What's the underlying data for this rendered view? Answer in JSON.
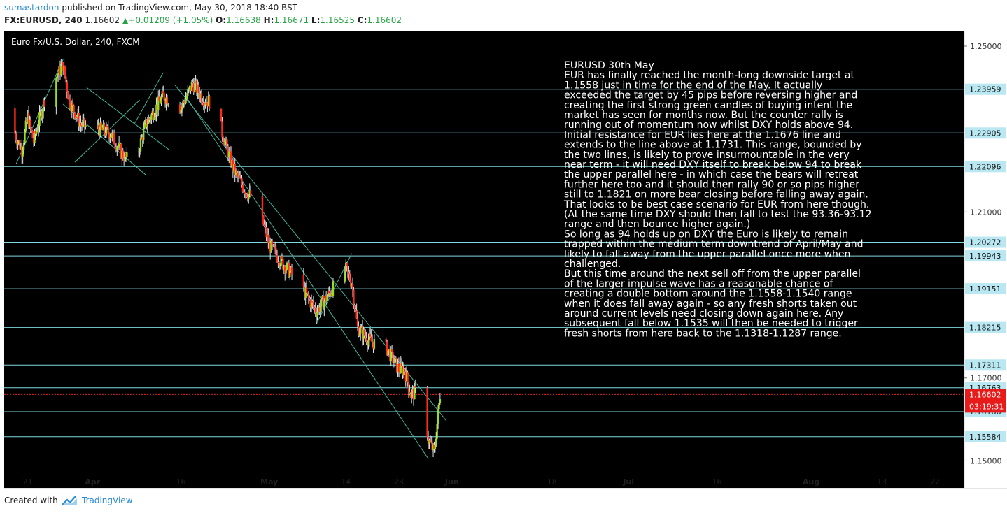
{
  "header": {
    "author": "sumastardon",
    "published_text": "published on TradingView.com, May 30, 2018 18:40 BST",
    "symbol": "FX:EURUSD, 240",
    "last": "1.16602",
    "change": "+0.01209 (+1.05%)",
    "o_label": "O:",
    "o_value": "1.16638",
    "h_label": "H:",
    "h_value": "1.16671",
    "l_label": "L:",
    "l_value": "1.16525",
    "c_label": "C:",
    "c_value": "1.16602"
  },
  "footer": {
    "created_with": "Created with",
    "brand": "TradingView"
  },
  "colors": {
    "background": "#000000",
    "bull": "#9bdc1c",
    "bear": "#ff2b1c",
    "level_line": "#7fd8de",
    "trendline": "#3fb59a",
    "price_tag": "#e81b1b",
    "level_tag": "#b9e8f2"
  },
  "chart_data": {
    "type": "candlestick",
    "title": "Euro Fx/U.S. Dollar, 240, FXCM",
    "y_ticks": [
      "1.25000",
      "1.21000",
      "1.17000",
      "1.15000"
    ],
    "y_range": [
      1.1435,
      1.2537
    ],
    "x_ticks": [
      "21",
      "Apr",
      "16",
      "May",
      "14",
      "23",
      "Jun",
      "18",
      "Jul",
      "16",
      "Aug",
      "13",
      "22"
    ],
    "x_range": [
      "2018-03-17",
      "2018-08-27"
    ],
    "horizontal_levels": [
      {
        "label": "1.23959",
        "value": 1.23959
      },
      {
        "label": "1.22905",
        "value": 1.22905
      },
      {
        "label": "1.22096",
        "value": 1.22096
      },
      {
        "label": "1.20272",
        "value": 1.20272
      },
      {
        "label": "1.19943",
        "value": 1.19943
      },
      {
        "label": "1.19151",
        "value": 1.19151
      },
      {
        "label": "1.18215",
        "value": 1.18215
      },
      {
        "label": "1.17311",
        "value": 1.17311
      },
      {
        "label": "1.16763",
        "value": 1.16763
      },
      {
        "label": "1.16186",
        "value": 1.16186
      },
      {
        "label": "1.15584",
        "value": 1.15584
      }
    ],
    "current_price": {
      "label": "1.16602",
      "value": 1.16602,
      "countdown": "03:19:31"
    },
    "trendlines": [
      {
        "from": [
          "2018-03-19",
          1.2215
        ],
        "to": [
          "2018-03-27",
          1.2468
        ]
      },
      {
        "from": [
          "2018-03-27",
          1.236
        ],
        "to": [
          "2018-04-10",
          1.219
        ]
      },
      {
        "from": [
          "2018-03-29",
          1.222
        ],
        "to": [
          "2018-04-09",
          1.237
        ]
      },
      {
        "from": [
          "2018-04-08",
          1.231
        ],
        "to": [
          "2018-04-13",
          1.2436
        ]
      },
      {
        "from": [
          "2018-04-15",
          1.2406
        ],
        "to": [
          "2018-05-31",
          1.1598
        ]
      },
      {
        "from": [
          "2018-04-17",
          1.2375
        ],
        "to": [
          "2018-05-28",
          1.1505
        ]
      },
      {
        "from": [
          "2018-03-31",
          1.24
        ],
        "to": [
          "2018-04-14",
          1.225
        ]
      },
      {
        "from": [
          "2018-05-09",
          1.183
        ],
        "to": [
          "2018-05-15",
          1.2
        ]
      }
    ],
    "path": [
      [
        "2018-03-17",
        1.235
      ],
      [
        "2018-03-20",
        1.225
      ],
      [
        "2018-03-21",
        1.233
      ],
      [
        "2018-03-22",
        1.227
      ],
      [
        "2018-03-24",
        1.238
      ],
      [
        "2018-03-27",
        1.2455
      ],
      [
        "2018-03-28",
        1.237
      ],
      [
        "2018-03-30",
        1.231
      ],
      [
        "2018-04-02",
        1.23
      ],
      [
        "2018-04-04",
        1.229
      ],
      [
        "2018-04-06",
        1.224
      ],
      [
        "2018-04-08",
        1.221
      ],
      [
        "2018-04-10",
        1.231
      ],
      [
        "2018-04-13",
        1.238
      ],
      [
        "2018-04-16",
        1.235
      ],
      [
        "2018-04-18",
        1.241
      ],
      [
        "2018-04-20",
        1.237
      ],
      [
        "2018-04-22",
        1.236
      ],
      [
        "2018-04-23",
        1.229
      ],
      [
        "2018-04-25",
        1.22
      ],
      [
        "2018-04-27",
        1.215
      ],
      [
        "2018-04-29",
        1.212
      ],
      [
        "2018-05-01",
        1.202
      ],
      [
        "2018-05-03",
        1.198
      ],
      [
        "2018-05-06",
        1.193
      ],
      [
        "2018-05-09",
        1.186
      ],
      [
        "2018-05-11",
        1.19
      ],
      [
        "2018-05-14",
        1.196
      ],
      [
        "2018-05-15",
        1.193
      ],
      [
        "2018-05-16",
        1.182
      ],
      [
        "2018-05-18",
        1.179
      ],
      [
        "2018-05-21",
        1.177
      ],
      [
        "2018-05-23",
        1.172
      ],
      [
        "2018-05-24",
        1.172
      ],
      [
        "2018-05-25",
        1.166
      ],
      [
        "2018-05-27",
        1.167
      ],
      [
        "2018-05-28",
        1.155
      ],
      [
        "2018-05-29",
        1.152
      ],
      [
        "2018-05-30",
        1.166
      ]
    ]
  },
  "annotation": [
    "EURUSD  30th May",
    "EUR has finally reached the month-long downside target at",
    "1.1558 just in time for the end of the May. It actually",
    "exceeded the target by 45 pips before reversing higher and",
    "creating the first strong green candles of buying intent the",
    "market has seen for months now. But the counter rally is",
    "running out of momentum now whilst DXY holds above 94.",
    "Initial resistance for EUR lies here at the 1.1676 line and",
    "extends to the line above at 1.1731. This range, bounded by",
    "the two lines, is likely to prove insurmountable in the very",
    "near term - it will need DXY itself to break below 94 to break",
    "the upper parallel here - in which case the bears will retreat",
    "further here too and it should then rally 90 or so pips higher",
    "still to 1.1821 on more bear closing before falling away again.",
    "That looks to be best case scenario for EUR from here though.",
    "(At the same time DXY should then fall to test the 93.36-93.12",
    "range and then bounce higher again.)",
    "So long as 94 holds up on DXY the Euro is likely to remain",
    "trapped within the medium term downtrend of April/May and",
    "likely to fall away from the upper parallel once more when",
    "challenged.",
    "But this time around the next sell off from the upper parallel",
    "of the larger impulse wave has a reasonable chance of",
    "creating a double bottom around the 1.1558-1.1540 range",
    "when it does fall away again - so any fresh shorts taken out",
    "around current levels need closing down again here. Any",
    "subsequent fall below 1.1535 will then be needed to trigger",
    "fresh shorts from here back to the 1.1318-1.1287 range."
  ]
}
